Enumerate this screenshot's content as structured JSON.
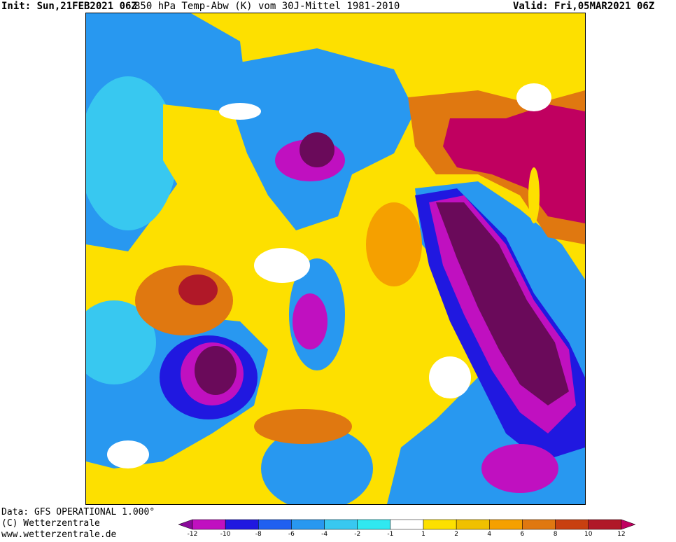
{
  "header": {
    "init": "Init: Sun,21FEB2021 06Z",
    "title": "850 hPa Temp-Abw (K) vom 30J-Mittel 1981-2010",
    "valid": "Valid: Fri,05MAR2021 06Z"
  },
  "footer": {
    "data_source": "Data: GFS OPERATIONAL 1.000°",
    "copyright": "(C) Wetterzentrale",
    "website": "www.wetterzentrale.de"
  },
  "map": {
    "type": "temperature-anomaly-polar-map",
    "colors": {
      "deep_purple": "#6a0a5a",
      "magenta": "#c010c0",
      "blue_violet": "#2018e0",
      "blue": "#2060f0",
      "mid_blue": "#2898f0",
      "light_blue": "#38c8f0",
      "cyan": "#30e8f0",
      "white": "#ffffff",
      "yellow": "#fde000",
      "gold": "#f0c000",
      "orange_light": "#f5a000",
      "orange": "#e07810",
      "red_orange": "#c84010",
      "dark_red": "#b01828",
      "crimson": "#c00060"
    }
  },
  "legend": {
    "name": "colorbar",
    "ticks": [
      "-12",
      "-10",
      "-8",
      "-6",
      "-4",
      "-2",
      "-1",
      "1",
      "2",
      "4",
      "6",
      "8",
      "10",
      "12"
    ],
    "colors": [
      "#8a0a9a",
      "#c010c0",
      "#2018e0",
      "#2060f0",
      "#2898f0",
      "#38c8f0",
      "#30e8f0",
      "#ffffff",
      "#fde000",
      "#f0c000",
      "#f5a000",
      "#e07810",
      "#c84010",
      "#b01828",
      "#c00060"
    ]
  }
}
